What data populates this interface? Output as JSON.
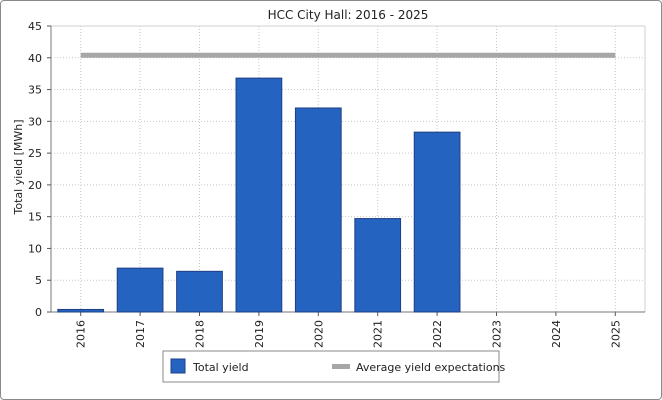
{
  "chart_data": {
    "type": "bar",
    "title": "HCC City Hall: 2016 - 2025",
    "xlabel": "",
    "ylabel": "Total yield [MWh]",
    "ylim": [
      0,
      45
    ],
    "yticks": [
      "0",
      "5",
      "10",
      "15",
      "20",
      "25",
      "30",
      "35",
      "40",
      "45"
    ],
    "categories": [
      "2016",
      "2017",
      "2018",
      "2019",
      "2020",
      "2021",
      "2022",
      "2023",
      "2024",
      "2025"
    ],
    "series": [
      {
        "name": "Total yield",
        "kind": "bar",
        "color": "#2563c0",
        "values": [
          0.4,
          6.9,
          6.4,
          36.8,
          32.1,
          14.7,
          28.3,
          0,
          0,
          0
        ]
      },
      {
        "name": "Average yield expectations",
        "kind": "line",
        "color": "#a6a6a6",
        "value": 40.4
      }
    ],
    "grid": true,
    "legend_position": "bottom"
  },
  "colors": {
    "bar": "#2563c0",
    "bar_border": "#1f3f85",
    "expectation_line": "#a6a6a6",
    "grid": "#c8c8c8"
  }
}
